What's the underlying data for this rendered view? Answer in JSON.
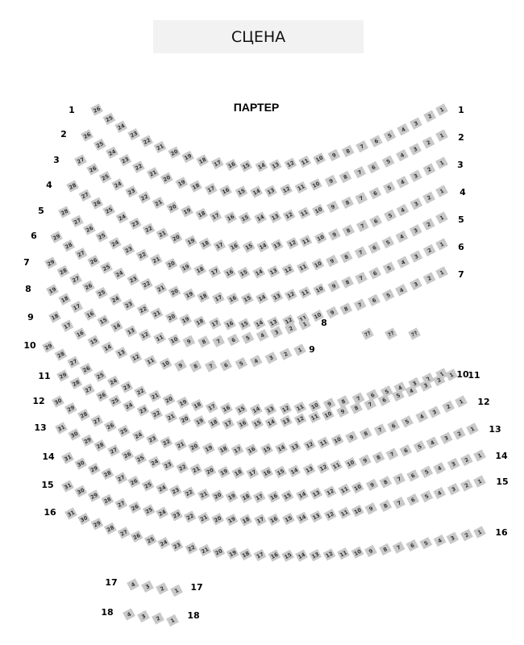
{
  "stage": {
    "label": "СЦЕНА"
  },
  "section": {
    "label": "ПАРТЕР"
  },
  "colors": {
    "seat": "#c9c9c9",
    "stage_bg": "#f2f2f2"
  },
  "rows": [
    {
      "left_label": "1",
      "right_label": "1",
      "seat_max": 26
    },
    {
      "left_label": "2",
      "right_label": "2",
      "seat_max": 26
    },
    {
      "left_label": "3",
      "right_label": "3",
      "seat_max": 27
    },
    {
      "left_label": "4",
      "right_label": "4",
      "seat_max": 28
    },
    {
      "left_label": "5",
      "right_label": "5",
      "seat_max": 28
    },
    {
      "left_label": "6",
      "right_label": "6",
      "seat_max": 29
    },
    {
      "left_label": "7",
      "right_label": "7",
      "seat_max": 29
    },
    {
      "left_label": "8",
      "right_label": "8",
      "seat_max": 19
    },
    {
      "left_label": "9",
      "right_label": "9",
      "seat_max": 18
    },
    {
      "left_label": "10",
      "right_label": "10",
      "seat_max": 29
    },
    {
      "left_label": "11",
      "right_label": "11",
      "seat_max": 29
    },
    {
      "left_label": "12",
      "right_label": "12",
      "seat_max": 30
    },
    {
      "left_label": "13",
      "right_label": "13",
      "seat_max": 31
    },
    {
      "left_label": "14",
      "right_label": "14",
      "seat_max": 31
    },
    {
      "left_label": "15",
      "right_label": "15",
      "seat_max": 31
    },
    {
      "left_label": "16",
      "right_label": "16",
      "seat_max": 31
    },
    {
      "left_label": "17",
      "right_label": "17",
      "seat_max": 4
    },
    {
      "left_label": "18",
      "right_label": "18",
      "seat_max": 4
    }
  ],
  "unknown_seats": [
    "??",
    "??",
    "??"
  ]
}
